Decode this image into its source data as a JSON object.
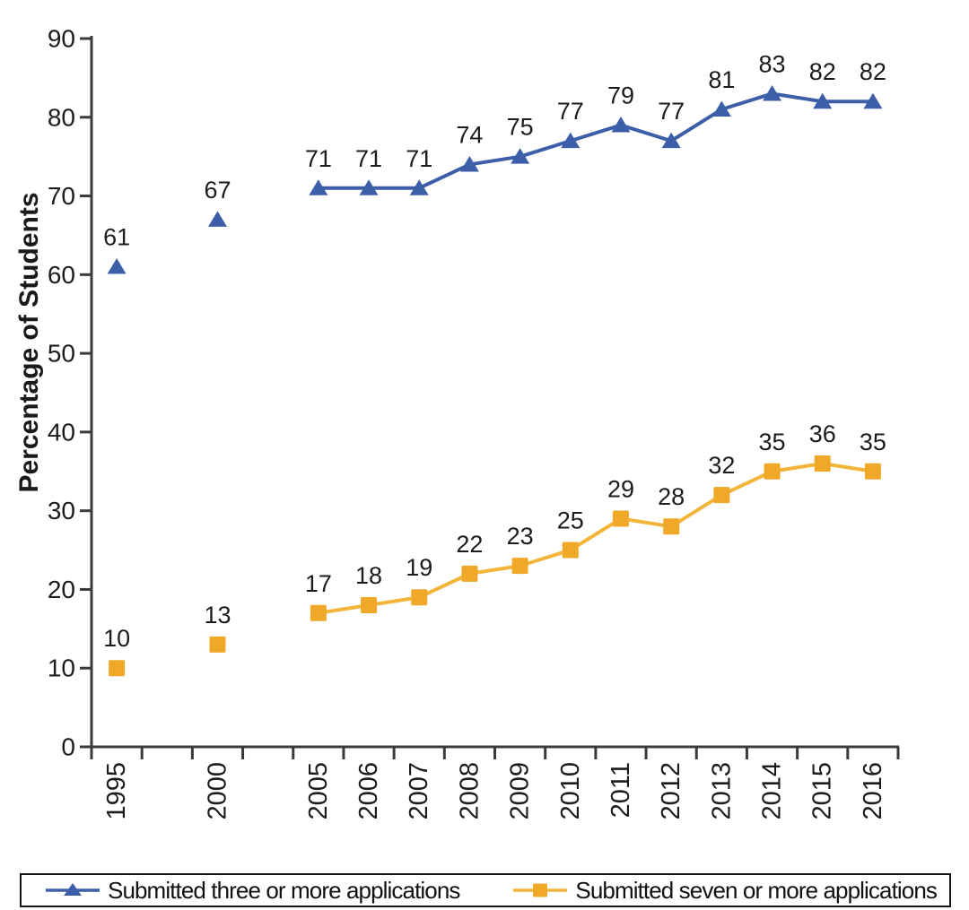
{
  "chart_data": {
    "type": "line",
    "title": "",
    "xlabel": "",
    "ylabel": "Percentage of Students",
    "ylim": [
      0,
      90
    ],
    "yticks": [
      0,
      10,
      20,
      30,
      40,
      50,
      60,
      70,
      80,
      90
    ],
    "grid": false,
    "legend_position": "bottom",
    "data_labels": true,
    "categories": [
      "1995",
      "2000",
      "2005",
      "2006",
      "2007",
      "2008",
      "2009",
      "2010",
      "2011",
      "2012",
      "2013",
      "2014",
      "2015",
      "2016"
    ],
    "category_slots": [
      0,
      2,
      4,
      5,
      6,
      7,
      8,
      9,
      10,
      11,
      12,
      13,
      14,
      15
    ],
    "total_slots": 16,
    "axis_color": "#3a3a3a",
    "label_color": "#1c1c1c",
    "series": [
      {
        "name": "Submitted three or more applications",
        "marker": "triangle",
        "color": "#3D5EA9",
        "line_color": "#3D5EA9",
        "values": [
          61,
          67,
          71,
          71,
          71,
          74,
          75,
          77,
          79,
          77,
          81,
          83,
          82,
          82
        ],
        "segments": [
          [
            0
          ],
          [
            1
          ],
          [
            2,
            3,
            4,
            5,
            6,
            7,
            8,
            9,
            10,
            11,
            12,
            13
          ]
        ]
      },
      {
        "name": "Submitted seven or more applications",
        "marker": "square",
        "color": "#EFA828",
        "line_color": "#F2B53A",
        "values": [
          10,
          13,
          17,
          18,
          19,
          22,
          23,
          25,
          29,
          28,
          32,
          35,
          36,
          35
        ],
        "segments": [
          [
            0
          ],
          [
            1
          ],
          [
            2,
            3,
            4,
            5,
            6,
            7,
            8,
            9,
            10,
            11,
            12,
            13
          ]
        ]
      }
    ]
  }
}
